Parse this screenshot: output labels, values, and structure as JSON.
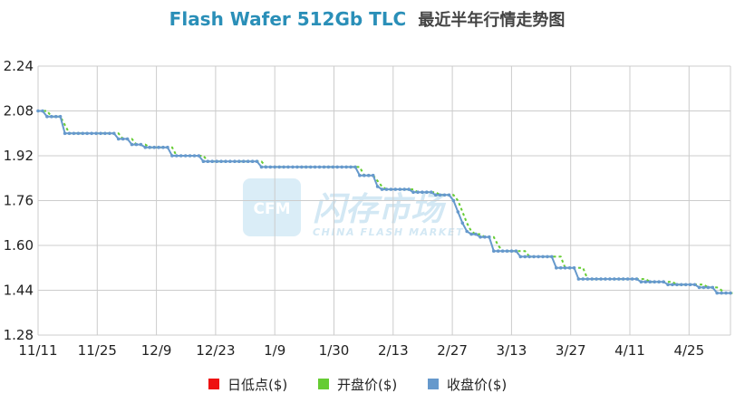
{
  "title": {
    "en": "Flash Wafer 512Gb TLC",
    "cn": "最近半年行情走势图"
  },
  "watermark": {
    "logo": "CFM",
    "cn": "闪存市场",
    "en": "CHINA FLASH MARKET"
  },
  "colors": {
    "low": "#ee1111",
    "open": "#66cc33",
    "close": "#6699cc",
    "grid": "#cccccc",
    "title": "#2a8fb8"
  },
  "chart_data": {
    "type": "line",
    "title": "Flash Wafer 512Gb TLC 最近半年行情走势图",
    "xlabel": "",
    "ylabel": "",
    "x_tick_labels": [
      "11/11",
      "11/25",
      "12/9",
      "12/23",
      "1/9",
      "1/30",
      "2/13",
      "2/27",
      "3/13",
      "3/27",
      "4/11",
      "4/25"
    ],
    "y_ticks": [
      "1.28",
      "1.44",
      "1.60",
      "1.76",
      "1.92",
      "2.08",
      "2.24"
    ],
    "ylim": [
      1.28,
      2.24
    ],
    "grid": true,
    "legend_position": "bottom",
    "legend": [
      "日低点($)",
      "开盘价($)",
      "收盘价($)"
    ],
    "series": [
      {
        "name": "收盘价($)",
        "values": [
          2.08,
          2.08,
          2.06,
          2.06,
          2.06,
          2.06,
          2.0,
          2.0,
          2.0,
          2.0,
          2.0,
          2.0,
          2.0,
          2.0,
          2.0,
          2.0,
          2.0,
          2.0,
          1.98,
          1.98,
          1.98,
          1.96,
          1.96,
          1.96,
          1.95,
          1.95,
          1.95,
          1.95,
          1.95,
          1.95,
          1.92,
          1.92,
          1.92,
          1.92,
          1.92,
          1.92,
          1.92,
          1.9,
          1.9,
          1.9,
          1.9,
          1.9,
          1.9,
          1.9,
          1.9,
          1.9,
          1.9,
          1.9,
          1.9,
          1.9,
          1.88,
          1.88,
          1.88,
          1.88,
          1.88,
          1.88,
          1.88,
          1.88,
          1.88,
          1.88,
          1.88,
          1.88,
          1.88,
          1.88,
          1.88,
          1.88,
          1.88,
          1.88,
          1.88,
          1.88,
          1.88,
          1.88,
          1.85,
          1.85,
          1.85,
          1.85,
          1.81,
          1.8,
          1.8,
          1.8,
          1.8,
          1.8,
          1.8,
          1.8,
          1.79,
          1.79,
          1.79,
          1.79,
          1.79,
          1.78,
          1.78,
          1.78,
          1.78,
          1.76,
          1.72,
          1.68,
          1.65,
          1.64,
          1.64,
          1.63,
          1.63,
          1.63,
          1.58,
          1.58,
          1.58,
          1.58,
          1.58,
          1.58,
          1.56,
          1.56,
          1.56,
          1.56,
          1.56,
          1.56,
          1.56,
          1.56,
          1.52,
          1.52,
          1.52,
          1.52,
          1.52,
          1.48,
          1.48,
          1.48,
          1.48,
          1.48,
          1.48,
          1.48,
          1.48,
          1.48,
          1.48,
          1.48,
          1.48,
          1.48,
          1.48,
          1.47,
          1.47,
          1.47,
          1.47,
          1.47,
          1.47,
          1.46,
          1.46,
          1.46,
          1.46,
          1.46,
          1.46,
          1.46,
          1.45,
          1.45,
          1.45,
          1.45,
          1.43,
          1.43,
          1.43,
          1.43
        ]
      },
      {
        "name": "开盘价($)",
        "values": [
          2.08,
          2.08,
          2.08,
          2.06,
          2.06,
          2.06,
          2.03,
          2.0,
          2.0,
          2.0,
          2.0,
          2.0,
          2.0,
          2.0,
          2.0,
          2.0,
          2.0,
          2.0,
          2.0,
          1.98,
          1.98,
          1.98,
          1.96,
          1.96,
          1.96,
          1.95,
          1.95,
          1.95,
          1.95,
          1.95,
          1.95,
          1.92,
          1.92,
          1.92,
          1.92,
          1.92,
          1.92,
          1.92,
          1.9,
          1.9,
          1.9,
          1.9,
          1.9,
          1.9,
          1.9,
          1.9,
          1.9,
          1.9,
          1.9,
          1.9,
          1.9,
          1.88,
          1.88,
          1.88,
          1.88,
          1.88,
          1.88,
          1.88,
          1.88,
          1.88,
          1.88,
          1.88,
          1.88,
          1.88,
          1.88,
          1.88,
          1.88,
          1.88,
          1.88,
          1.88,
          1.88,
          1.88,
          1.88,
          1.85,
          1.85,
          1.85,
          1.83,
          1.81,
          1.8,
          1.8,
          1.8,
          1.8,
          1.8,
          1.8,
          1.8,
          1.79,
          1.79,
          1.79,
          1.79,
          1.79,
          1.78,
          1.78,
          1.78,
          1.78,
          1.76,
          1.72,
          1.68,
          1.65,
          1.64,
          1.64,
          1.63,
          1.63,
          1.63,
          1.6,
          1.58,
          1.58,
          1.58,
          1.58,
          1.58,
          1.58,
          1.56,
          1.56,
          1.56,
          1.56,
          1.56,
          1.56,
          1.56,
          1.56,
          1.52,
          1.52,
          1.52,
          1.52,
          1.52,
          1.48,
          1.48,
          1.48,
          1.48,
          1.48,
          1.48,
          1.48,
          1.48,
          1.48,
          1.48,
          1.48,
          1.48,
          1.48,
          1.48,
          1.47,
          1.47,
          1.47,
          1.47,
          1.47,
          1.47,
          1.46,
          1.46,
          1.46,
          1.46,
          1.46,
          1.46,
          1.46,
          1.45,
          1.45,
          1.45,
          1.44,
          1.43,
          1.43,
          1.43
        ]
      },
      {
        "name": "日低点($)",
        "values": []
      }
    ]
  }
}
